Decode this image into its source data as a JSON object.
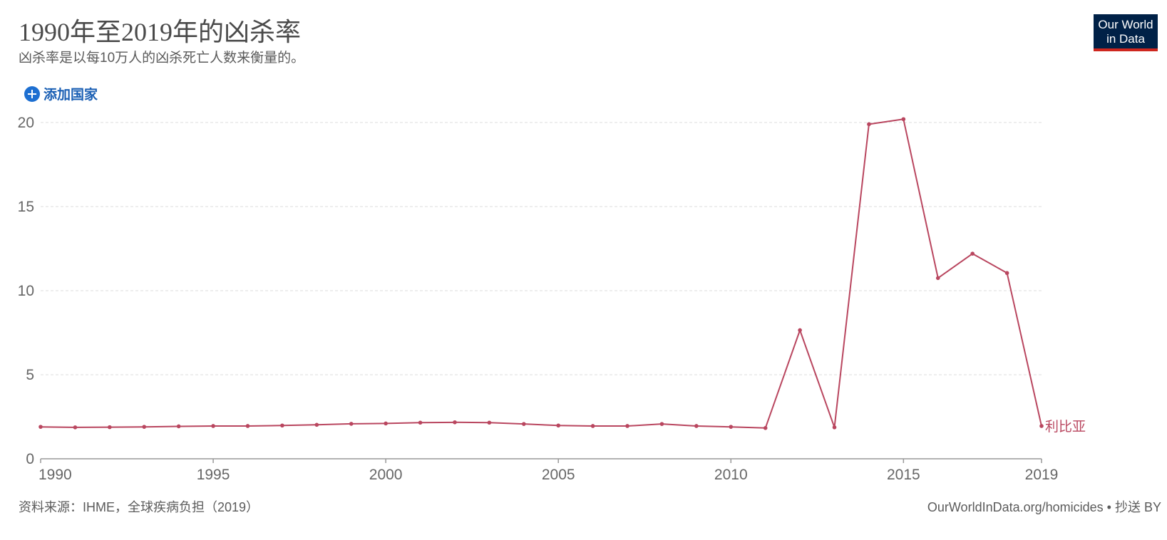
{
  "header": {
    "title": "1990年至2019年的凶杀率",
    "subtitle": "凶杀率是以每10万人的凶杀死亡人数来衡量的。"
  },
  "logo": {
    "line1": "Our World",
    "line2": "in Data"
  },
  "controls": {
    "add_country_label": "添加国家",
    "add_icon": "plus-circle-icon"
  },
  "footer": {
    "source": "资料来源：IHME，全球疾病负担（2019）",
    "url": "OurWorldInData.org/homicides",
    "license": " • 抄送 BY"
  },
  "colors": {
    "series": "#b9465f",
    "brand_bg": "#002147",
    "brand_accent": "#ce261e",
    "link": "#1a5fb4"
  },
  "chart_data": {
    "type": "line",
    "title": "1990年至2019年的凶杀率",
    "subtitle": "凶杀率是以每10万人的凶杀死亡人数来衡量的。",
    "xlabel": "",
    "ylabel": "",
    "xlim": [
      1990,
      2019
    ],
    "ylim": [
      0,
      20
    ],
    "x_ticks": [
      1990,
      1995,
      2000,
      2005,
      2010,
      2015,
      2019
    ],
    "y_ticks": [
      0,
      5,
      10,
      15,
      20
    ],
    "grid": "horizontal dashed",
    "legend": "inline label at line end (right)",
    "x": [
      1990,
      1991,
      1992,
      1993,
      1994,
      1995,
      1996,
      1997,
      1998,
      1999,
      2000,
      2001,
      2002,
      2003,
      2004,
      2005,
      2006,
      2007,
      2008,
      2009,
      2010,
      2011,
      2012,
      2013,
      2014,
      2015,
      2016,
      2017,
      2018,
      2019
    ],
    "series": [
      {
        "name": "利比亚",
        "values": [
          1.9,
          1.87,
          1.88,
          1.9,
          1.93,
          1.95,
          1.95,
          1.98,
          2.02,
          2.08,
          2.1,
          2.15,
          2.17,
          2.15,
          2.07,
          1.98,
          1.95,
          1.95,
          2.07,
          1.95,
          1.9,
          1.83,
          7.65,
          1.87,
          19.9,
          20.2,
          10.75,
          12.2,
          11.05,
          1.95
        ]
      }
    ]
  }
}
